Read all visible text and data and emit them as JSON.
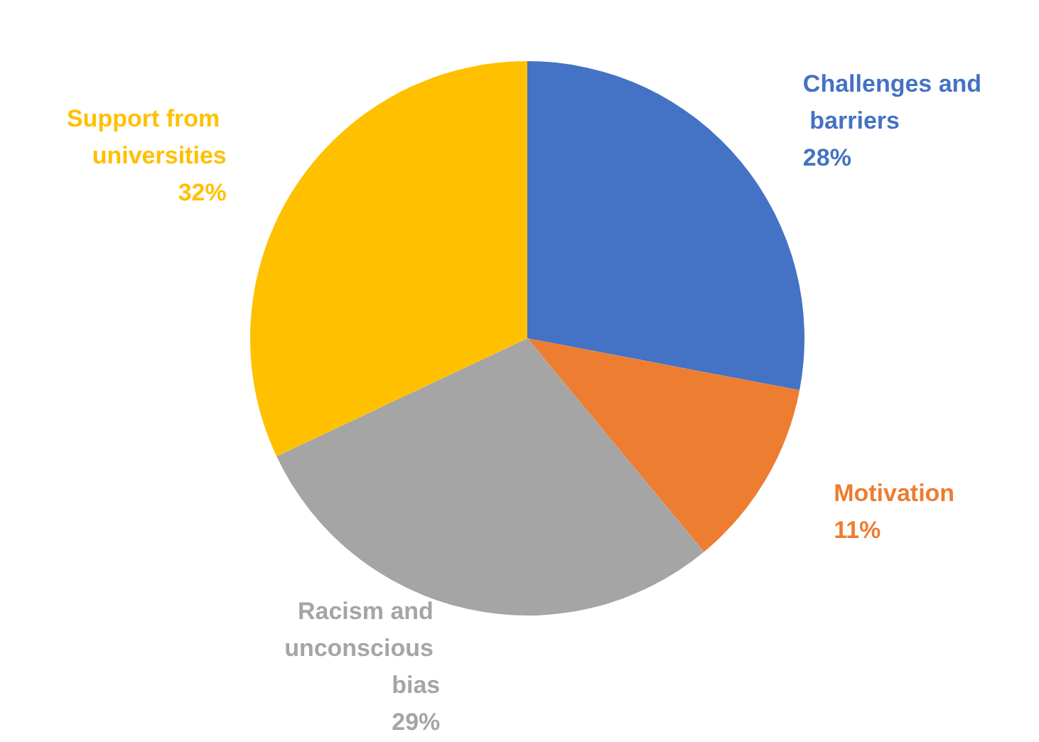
{
  "chart_data": {
    "type": "pie",
    "categories": [
      "Challenges and barriers",
      "Motivation",
      "Racism and unconscious bias",
      "Support from universities"
    ],
    "values": [
      28,
      11,
      29,
      32
    ],
    "colors": [
      "#4472c4",
      "#ed7d31",
      "#a5a5a5",
      "#ffc000"
    ],
    "value_labels": [
      "28%",
      "11%",
      "29%",
      "32%"
    ]
  }
}
